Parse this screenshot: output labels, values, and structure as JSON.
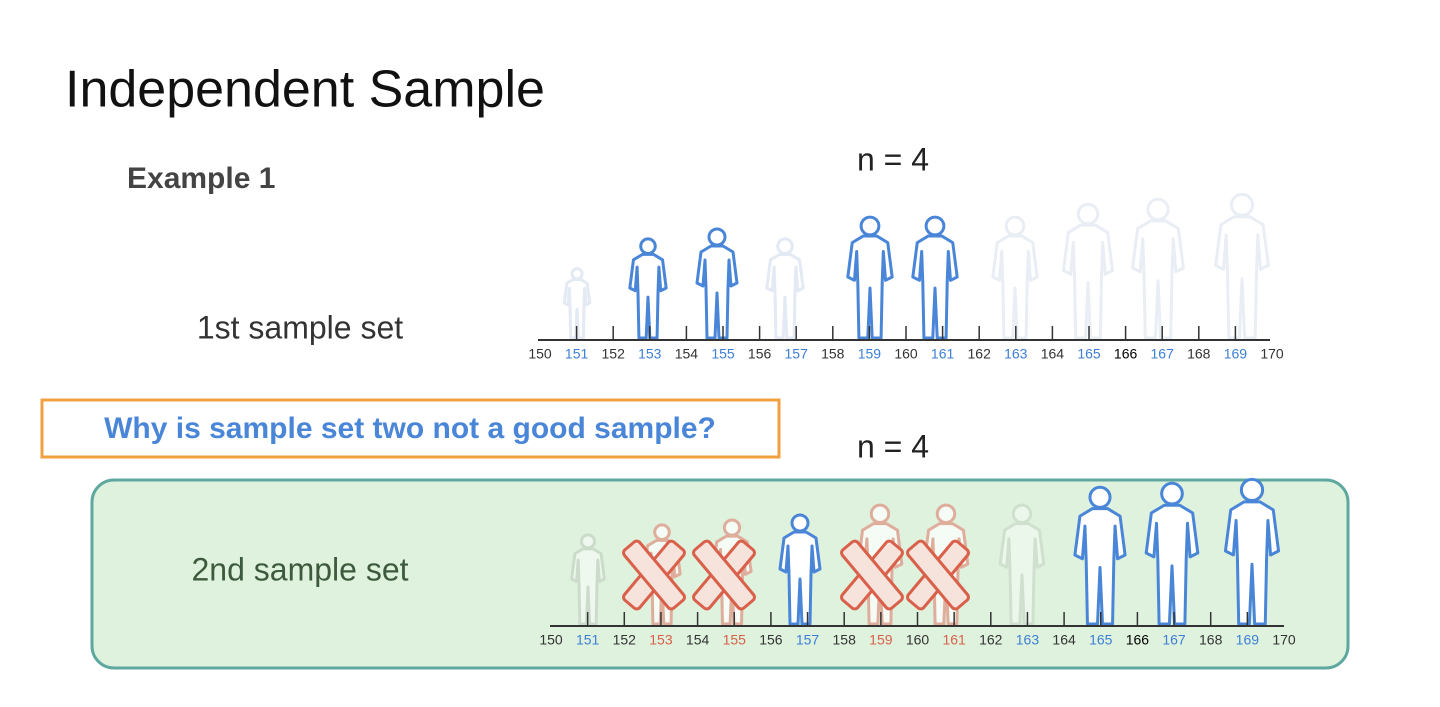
{
  "title": "Independent Sample",
  "example": "Example 1",
  "question": "Why is sample set two not a good sample?",
  "sets": [
    {
      "label": "1st sample set",
      "n_label": "n = 4",
      "ticks": [
        {
          "label": "150",
          "color": "#333333"
        },
        {
          "label": "151",
          "color": "#3d7fd6"
        },
        {
          "label": "152",
          "color": "#333333"
        },
        {
          "label": "153",
          "color": "#3d7fd6"
        },
        {
          "label": "154",
          "color": "#333333"
        },
        {
          "label": "155",
          "color": "#3d7fd6"
        },
        {
          "label": "156",
          "color": "#333333"
        },
        {
          "label": "157",
          "color": "#3d7fd6"
        },
        {
          "label": "158",
          "color": "#333333"
        },
        {
          "label": "159",
          "color": "#3d7fd6"
        },
        {
          "label": "160",
          "color": "#333333"
        },
        {
          "label": "161",
          "color": "#3d7fd6"
        },
        {
          "label": "162",
          "color": "#333333"
        },
        {
          "label": "163",
          "color": "#3d7fd6"
        },
        {
          "label": "164",
          "color": "#333333"
        },
        {
          "label": "165",
          "color": "#3d7fd6"
        },
        {
          "label": "166",
          "color": "#000000"
        },
        {
          "label": "167",
          "color": "#3d7fd6"
        },
        {
          "label": "168",
          "color": "#333333"
        },
        {
          "label": "169",
          "color": "#3d7fd6"
        },
        {
          "label": "170",
          "color": "#333333"
        }
      ]
    },
    {
      "label": "2nd sample set",
      "n_label": "n = 4",
      "ticks": [
        {
          "label": "150",
          "color": "#333333"
        },
        {
          "label": "151",
          "color": "#3d7fd6"
        },
        {
          "label": "152",
          "color": "#333333"
        },
        {
          "label": "153",
          "color": "#d9604a"
        },
        {
          "label": "154",
          "color": "#333333"
        },
        {
          "label": "155",
          "color": "#d9604a"
        },
        {
          "label": "156",
          "color": "#333333"
        },
        {
          "label": "157",
          "color": "#3d7fd6"
        },
        {
          "label": "158",
          "color": "#333333"
        },
        {
          "label": "159",
          "color": "#d9604a"
        },
        {
          "label": "160",
          "color": "#333333"
        },
        {
          "label": "161",
          "color": "#d9604a"
        },
        {
          "label": "162",
          "color": "#333333"
        },
        {
          "label": "163",
          "color": "#3d7fd6"
        },
        {
          "label": "164",
          "color": "#333333"
        },
        {
          "label": "165",
          "color": "#3d7fd6"
        },
        {
          "label": "166",
          "color": "#000000"
        },
        {
          "label": "167",
          "color": "#3d7fd6"
        },
        {
          "label": "168",
          "color": "#333333"
        },
        {
          "label": "169",
          "color": "#3d7fd6"
        },
        {
          "label": "170",
          "color": "#333333"
        }
      ]
    }
  ]
}
